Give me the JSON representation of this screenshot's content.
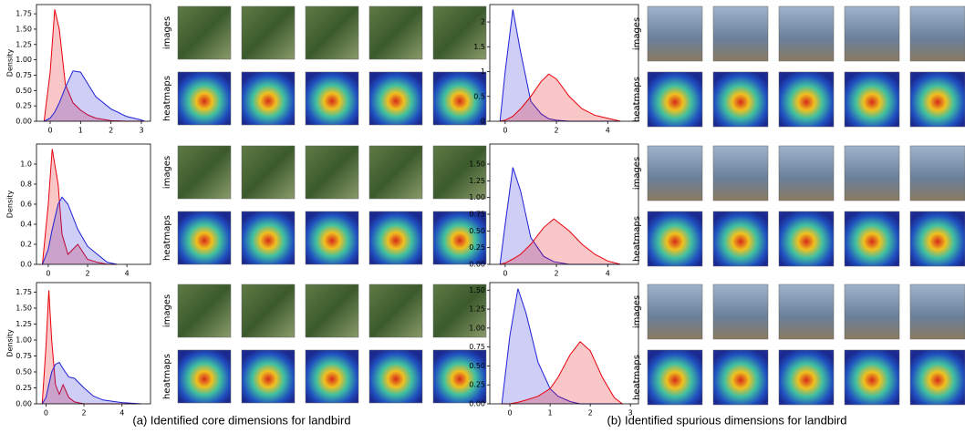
{
  "figure": {
    "row_labels": [
      "images",
      "heatmaps"
    ],
    "captions": [
      "(a) Identified core dimensions for landbird",
      "(b) Identified spurious dimensions for landbird"
    ]
  },
  "chart_data": [
    {
      "type": "density",
      "ylabel": "Density",
      "xlim": [
        -0.45,
        3.3
      ],
      "ylim": [
        0,
        1.9
      ],
      "xticks": [
        0,
        1,
        2,
        3
      ],
      "yticks": [
        {
          "value": 0,
          "label": "0.00"
        },
        {
          "value": 0.25,
          "label": "0.25"
        },
        {
          "value": 0.5,
          "label": "0.50"
        },
        {
          "value": 0.75,
          "label": "0.75"
        },
        {
          "value": 1,
          "label": "1.00"
        },
        {
          "value": 1.25,
          "label": "1.25"
        },
        {
          "value": 1.5,
          "label": "1.50"
        },
        {
          "value": 1.75,
          "label": "1.75"
        }
      ],
      "x": [
        -0.2,
        0,
        0.15,
        0.3,
        0.5,
        0.75,
        1,
        1.25,
        1.5,
        2,
        2.5,
        3,
        3.1
      ],
      "series": [
        {
          "color": "#e8000b",
          "values": [
            0,
            0.8,
            1.82,
            1.5,
            0.6,
            0.3,
            0.18,
            0.1,
            0.05,
            0.01,
            0,
            0,
            0
          ]
        },
        {
          "color": "#1f1fd6",
          "values": [
            0,
            0.05,
            0.15,
            0.3,
            0.55,
            0.82,
            0.8,
            0.6,
            0.4,
            0.2,
            0.08,
            0.02,
            0
          ]
        }
      ]
    },
    {
      "type": "density",
      "ylabel": "Density",
      "xlim": [
        -0.6,
        5.2
      ],
      "ylim": [
        0,
        1.2
      ],
      "xticks": [
        0,
        2,
        4
      ],
      "yticks": [
        {
          "value": 0,
          "label": "0.0"
        },
        {
          "value": 0.2,
          "label": "0.2"
        },
        {
          "value": 0.4,
          "label": "0.4"
        },
        {
          "value": 0.6,
          "label": "0.6"
        },
        {
          "value": 0.8,
          "label": "0.8"
        },
        {
          "value": 1,
          "label": "1.0"
        }
      ],
      "x": [
        -0.3,
        0,
        0.2,
        0.5,
        0.7,
        1,
        1.5,
        2,
        2.5,
        3,
        3.5
      ],
      "series": [
        {
          "color": "#e8000b",
          "values": [
            0,
            0.6,
            1.15,
            0.8,
            0.3,
            0.1,
            0.2,
            0.05,
            0.02,
            0,
            0
          ]
        },
        {
          "color": "#1f1fd6",
          "values": [
            0,
            0.15,
            0.35,
            0.6,
            0.67,
            0.6,
            0.35,
            0.18,
            0.1,
            0.02,
            0
          ]
        }
      ]
    },
    {
      "type": "density",
      "ylabel": "Density",
      "xlim": [
        -0.5,
        5.5
      ],
      "ylim": [
        0,
        1.9
      ],
      "xticks": [
        0,
        2,
        4
      ],
      "yticks": [
        {
          "value": 0,
          "label": "0.00"
        },
        {
          "value": 0.25,
          "label": "0.25"
        },
        {
          "value": 0.5,
          "label": "0.50"
        },
        {
          "value": 0.75,
          "label": "0.75"
        },
        {
          "value": 1,
          "label": "1.00"
        },
        {
          "value": 1.25,
          "label": "1.25"
        },
        {
          "value": 1.5,
          "label": "1.50"
        },
        {
          "value": 1.75,
          "label": "1.75"
        }
      ],
      "x": [
        -0.2,
        0,
        0.15,
        0.3,
        0.5,
        0.7,
        0.9,
        1.2,
        1.5,
        2,
        2.5,
        3,
        4,
        5
      ],
      "series": [
        {
          "color": "#e8000b",
          "values": [
            0,
            0.9,
            1.78,
            1.0,
            0.3,
            0.15,
            0.3,
            0.1,
            0.03,
            0,
            0,
            0,
            0,
            0
          ]
        },
        {
          "color": "#1f1fd6",
          "values": [
            0,
            0.1,
            0.3,
            0.5,
            0.62,
            0.65,
            0.55,
            0.42,
            0.4,
            0.25,
            0.12,
            0.06,
            0.02,
            0
          ]
        }
      ]
    },
    {
      "type": "density",
      "xlim": [
        -0.6,
        5.2
      ],
      "ylim": [
        0,
        2.35
      ],
      "xticks": [
        0,
        2,
        4
      ],
      "yticks": [
        0,
        0.5,
        1,
        1.5,
        2
      ],
      "x": [
        -0.2,
        0,
        0.3,
        0.6,
        1,
        1.4,
        1.7,
        2,
        2.5,
        3,
        3.5,
        4,
        4.5
      ],
      "series": [
        {
          "color": "#1f1fd6",
          "values": [
            0,
            1.0,
            2.25,
            1.4,
            0.4,
            0.15,
            0.05,
            0.02,
            0,
            0,
            0,
            0,
            0
          ]
        },
        {
          "color": "#e8000b",
          "values": [
            0,
            0.02,
            0.1,
            0.25,
            0.5,
            0.8,
            0.95,
            0.85,
            0.5,
            0.25,
            0.12,
            0.06,
            0
          ]
        }
      ]
    },
    {
      "type": "density",
      "xlim": [
        -0.6,
        5.2
      ],
      "ylim": [
        0,
        1.8
      ],
      "xticks": [
        0,
        2,
        4
      ],
      "yticks": [
        {
          "value": 0,
          "label": "0.00"
        },
        {
          "value": 0.25,
          "label": "0.25"
        },
        {
          "value": 0.5,
          "label": "0.50"
        },
        {
          "value": 0.75,
          "label": "0.75"
        },
        {
          "value": 1,
          "label": "1.00"
        },
        {
          "value": 1.25,
          "label": "1.25"
        },
        {
          "value": 1.5,
          "label": "1.50"
        }
      ],
      "x": [
        -0.2,
        0,
        0.3,
        0.6,
        1,
        1.5,
        1.9,
        2.5,
        3,
        3.5,
        4,
        4.5
      ],
      "series": [
        {
          "color": "#1f1fd6",
          "values": [
            0,
            0.6,
            1.45,
            1.1,
            0.4,
            0.12,
            0.04,
            0,
            0,
            0,
            0,
            0
          ]
        },
        {
          "color": "#e8000b",
          "values": [
            0,
            0.02,
            0.08,
            0.15,
            0.3,
            0.55,
            0.68,
            0.5,
            0.3,
            0.15,
            0.05,
            0
          ]
        }
      ]
    },
    {
      "type": "density",
      "xlim": [
        -0.5,
        3.2
      ],
      "ylim": [
        0,
        1.6
      ],
      "xticks": [
        0,
        1,
        2,
        3
      ],
      "yticks": [
        {
          "value": 0,
          "label": "0.00"
        },
        {
          "value": 0.25,
          "label": "0.25"
        },
        {
          "value": 0.5,
          "label": "0.50"
        },
        {
          "value": 0.75,
          "label": "0.75"
        },
        {
          "value": 1,
          "label": "1.00"
        },
        {
          "value": 1.25,
          "label": "1.25"
        },
        {
          "value": 1.5,
          "label": "1.50"
        }
      ],
      "x": [
        -0.2,
        0,
        0.2,
        0.4,
        0.7,
        1,
        1.2,
        1.5,
        1.75,
        2,
        2.3,
        2.6,
        2.8
      ],
      "series": [
        {
          "color": "#1f1fd6",
          "values": [
            0,
            0.9,
            1.52,
            1.2,
            0.55,
            0.2,
            0.1,
            0.03,
            0,
            0,
            0,
            0,
            0
          ]
        },
        {
          "color": "#e8000b",
          "values": [
            0,
            0,
            0.02,
            0.05,
            0.1,
            0.2,
            0.35,
            0.65,
            0.82,
            0.7,
            0.35,
            0.08,
            0
          ]
        }
      ]
    }
  ]
}
